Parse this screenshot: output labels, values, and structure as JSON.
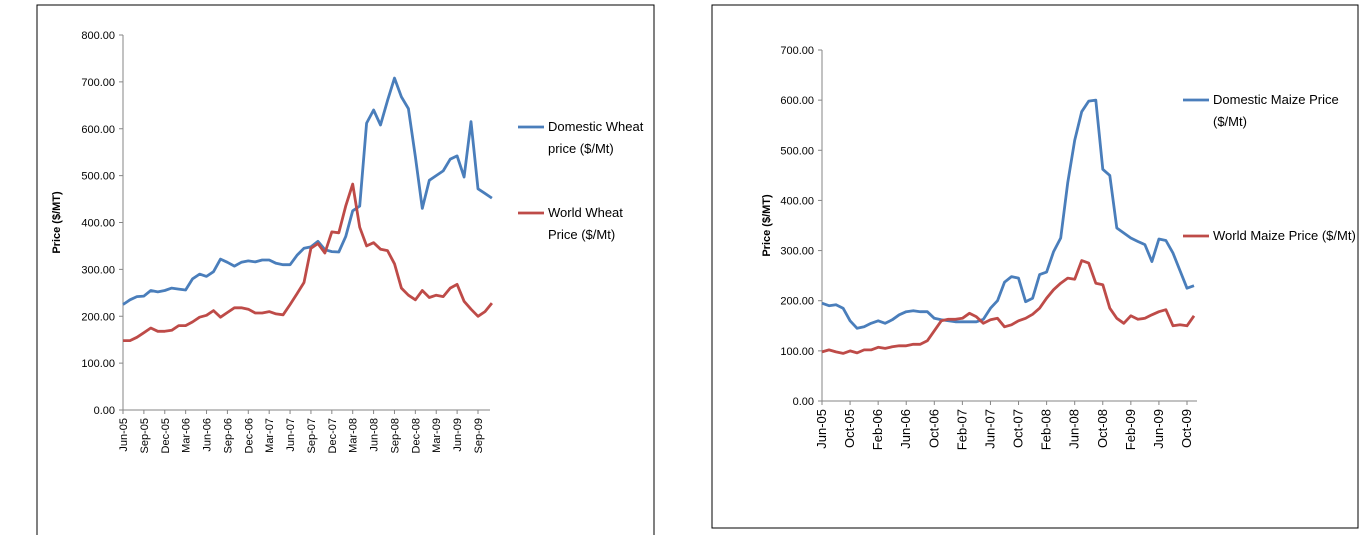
{
  "chart_data": [
    {
      "type": "line",
      "y_label": "Price ($/MT)",
      "categories": [
        "Jun-05",
        null,
        null,
        "Sep-05",
        null,
        null,
        "Dec-05",
        null,
        null,
        "Mar-06",
        null,
        null,
        "Jun-06",
        null,
        null,
        "Sep-06",
        null,
        null,
        "Dec-06",
        null,
        null,
        "Mar-07",
        null,
        null,
        "Jun-07",
        null,
        null,
        "Sep-07",
        null,
        null,
        "Dec-07",
        null,
        null,
        "Mar-08",
        null,
        null,
        "Jun-08",
        null,
        null,
        "Sep-08",
        null,
        null,
        "Dec-08",
        null,
        null,
        "Mar-09",
        null,
        null,
        "Jun-09",
        null,
        null,
        "Sep-09",
        null,
        null
      ],
      "series": [
        {
          "name": "Domestic Wheat price ($/Mt)",
          "color": "#4a7ebb",
          "values": [
            225,
            235,
            242,
            243,
            255,
            252,
            255,
            260,
            258,
            256,
            280,
            290,
            285,
            295,
            322,
            315,
            307,
            315,
            318,
            316,
            320,
            320,
            313,
            310,
            310,
            330,
            345,
            348,
            360,
            342,
            338,
            337,
            370,
            425,
            435,
            612,
            640,
            608,
            660,
            708,
            668,
            643,
            540,
            430,
            490,
            500,
            510,
            535,
            542,
            497,
            615,
            472,
            462,
            452
          ]
        },
        {
          "name": "World Wheat Price ($/Mt)",
          "color": "#be4b48",
          "values": [
            148,
            148,
            155,
            165,
            175,
            168,
            168,
            170,
            180,
            180,
            188,
            198,
            202,
            212,
            198,
            208,
            218,
            218,
            215,
            207,
            207,
            210,
            205,
            203,
            225,
            248,
            272,
            345,
            355,
            335,
            380,
            378,
            435,
            482,
            390,
            350,
            357,
            343,
            340,
            312,
            260,
            245,
            235,
            255,
            240,
            245,
            242,
            260,
            268,
            232,
            215,
            200,
            210,
            228
          ]
        }
      ],
      "ylim": [
        0,
        800
      ],
      "yticks": [
        {
          "value": 0,
          "label": "0.00"
        },
        {
          "value": 100,
          "label": "100.00"
        },
        {
          "value": 200,
          "label": "200.00"
        },
        {
          "value": 300,
          "label": "300.00"
        },
        {
          "value": 400,
          "label": "400.00"
        },
        {
          "value": 500,
          "label": "500.00"
        },
        {
          "value": 600,
          "label": "600.00"
        },
        {
          "value": 700,
          "label": "700.00"
        },
        {
          "value": 800,
          "label": "800.00"
        }
      ]
    },
    {
      "type": "line",
      "y_label": "Price ($/MT)",
      "categories": [
        "Jun-05",
        null,
        null,
        null,
        "Oct-05",
        null,
        null,
        null,
        "Feb-06",
        null,
        null,
        null,
        "Jun-06",
        null,
        null,
        null,
        "Oct-06",
        null,
        null,
        null,
        "Feb-07",
        null,
        null,
        null,
        "Jun-07",
        null,
        null,
        null,
        "Oct-07",
        null,
        null,
        null,
        "Feb-08",
        null,
        null,
        null,
        "Jun-08",
        null,
        null,
        null,
        "Oct-08",
        null,
        null,
        null,
        "Feb-09",
        null,
        null,
        null,
        "Jun-09",
        null,
        null,
        null,
        "Oct-09",
        null
      ],
      "series": [
        {
          "name": "Domestic Maize Price ($/Mt)",
          "color": "#4a7ebb",
          "values": [
            195,
            190,
            192,
            185,
            160,
            145,
            148,
            155,
            160,
            155,
            162,
            172,
            178,
            180,
            178,
            178,
            165,
            162,
            160,
            158,
            158,
            158,
            158,
            163,
            185,
            200,
            237,
            248,
            245,
            198,
            205,
            252,
            257,
            298,
            325,
            435,
            520,
            577,
            598,
            600,
            462,
            450,
            345,
            335,
            325,
            318,
            312,
            278,
            323,
            320,
            295,
            260,
            225,
            230
          ]
        },
        {
          "name": "World Maize Price ($/Mt)",
          "color": "#be4b48",
          "values": [
            98,
            102,
            98,
            95,
            100,
            96,
            102,
            102,
            107,
            105,
            108,
            110,
            110,
            113,
            113,
            120,
            140,
            160,
            163,
            163,
            165,
            175,
            168,
            155,
            162,
            165,
            148,
            152,
            160,
            165,
            173,
            185,
            205,
            222,
            235,
            245,
            243,
            280,
            275,
            235,
            232,
            185,
            165,
            155,
            170,
            163,
            165,
            172,
            178,
            182,
            150,
            152,
            150,
            170
          ]
        }
      ],
      "ylim": [
        0,
        700
      ],
      "yticks": [
        {
          "value": 0,
          "label": "0.00"
        },
        {
          "value": 100,
          "label": "100.00"
        },
        {
          "value": 200,
          "label": "200.00"
        },
        {
          "value": 300,
          "label": "300.00"
        },
        {
          "value": 400,
          "label": "400.00"
        },
        {
          "value": 500,
          "label": "500.00"
        },
        {
          "value": 600,
          "label": "600.00"
        },
        {
          "value": 700,
          "label": "700.00"
        }
      ]
    }
  ]
}
